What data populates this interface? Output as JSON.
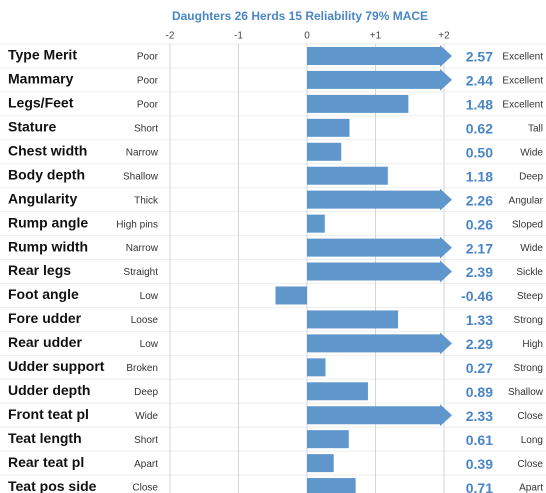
{
  "chart_data": {
    "type": "bar",
    "title": "Daughters 26  Herds 15  Reliability 79%  MACE",
    "categories": [
      "Type Merit",
      "Mammary",
      "Legs/Feet",
      "Stature",
      "Chest width",
      "Body depth",
      "Angularity",
      "Rump angle",
      "Rump width",
      "Rear legs",
      "Foot angle",
      "Fore udder",
      "Rear udder",
      "Udder support",
      "Udder depth",
      "Front teat pl",
      "Teat length",
      "Rear teat pl",
      "Teat pos side"
    ],
    "low_labels": [
      "Poor",
      "Poor",
      "Poor",
      "Short",
      "Narrow",
      "Shallow",
      "Thick",
      "High pins",
      "Narrow",
      "Straight",
      "Low",
      "Loose",
      "Low",
      "Broken",
      "Deep",
      "Wide",
      "Short",
      "Apart",
      "Close"
    ],
    "high_labels": [
      "Excellent",
      "Excellent",
      "Excellent",
      "Tall",
      "Wide",
      "Deep",
      "Angular",
      "Sloped",
      "Wide",
      "Sickle",
      "Steep",
      "Strong",
      "High",
      "Strong",
      "Shallow",
      "Close",
      "Long",
      "Close",
      "Apart"
    ],
    "values": [
      2.57,
      2.44,
      1.48,
      0.62,
      0.5,
      1.18,
      2.26,
      0.26,
      2.17,
      2.39,
      -0.46,
      1.33,
      2.29,
      0.27,
      0.89,
      2.33,
      0.61,
      0.39,
      0.71
    ],
    "value_labels": [
      "2.57",
      "2.44",
      "1.48",
      "0.62",
      "0.50",
      "1.18",
      "2.26",
      "0.26",
      "2.17",
      "2.39",
      "-0.46",
      "1.33",
      "2.29",
      "0.27",
      "0.89",
      "2.33",
      "0.61",
      "0.39",
      "0.71"
    ],
    "color": "#5f97cc",
    "xlim": [
      -2,
      2
    ],
    "xticks": [
      -2,
      -1,
      0,
      {
        "value": 1,
        "label": "+1"
      },
      {
        "value": 2,
        "label": "+2"
      }
    ],
    "grid": true
  }
}
